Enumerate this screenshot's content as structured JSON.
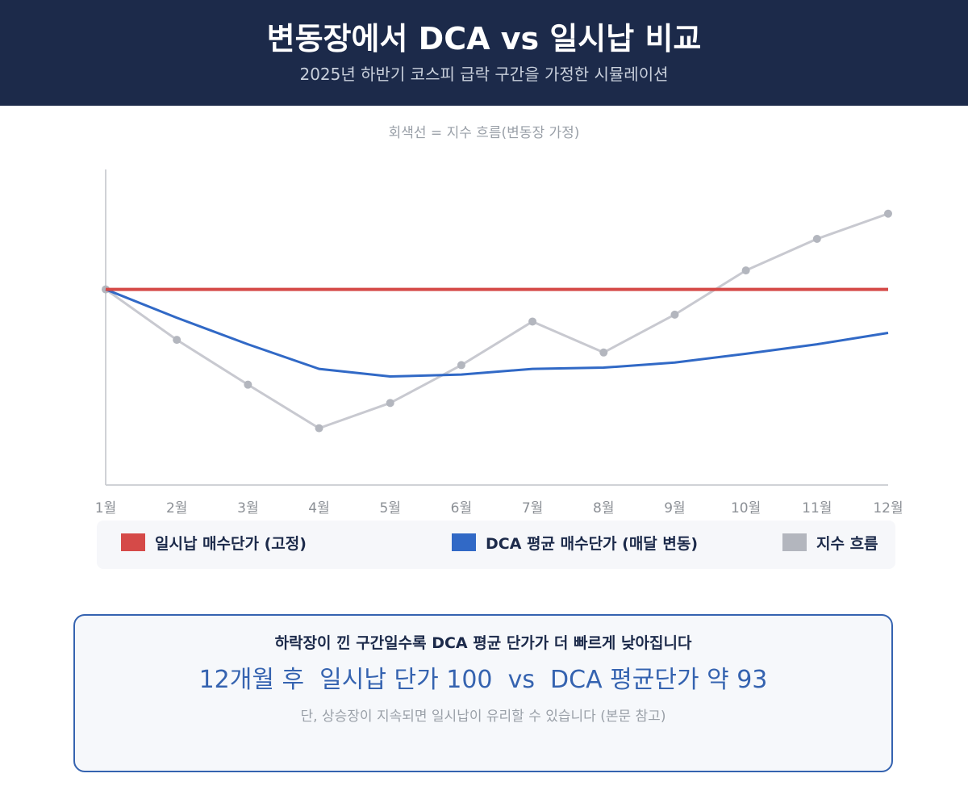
{
  "header": {
    "title": "변동장에서 DCA vs 일시납 비교",
    "subtitle": "2025년 하반기 코스피 급락 구간을 가정한 시뮬레이션",
    "background": "#1c2a4a"
  },
  "chart_note": "회색선 = 지수 흐름(변동장 가정)",
  "chart_data": {
    "type": "line",
    "categories": [
      "1월",
      "2월",
      "3월",
      "4월",
      "5월",
      "6월",
      "7월",
      "8월",
      "9월",
      "10월",
      "11월",
      "12월"
    ],
    "series": [
      {
        "name": "일시납 매수단가 (고정)",
        "color": "#d54a48",
        "values": [
          100,
          100,
          100,
          100,
          100,
          100,
          100,
          100,
          100,
          100,
          100,
          100
        ],
        "markers": false
      },
      {
        "name": "DCA 평균 매수단가 (매달 변동)",
        "color": "#3169c6",
        "values": [
          100,
          95.5,
          91.3,
          87.4,
          86.2,
          86.5,
          87.4,
          87.6,
          88.4,
          89.8,
          91.3,
          93.1
        ],
        "markers": false
      },
      {
        "name": "지수 흐름",
        "color": "#c8c9d0",
        "marker_color": "#b3b6be",
        "values": [
          100,
          92,
          84.9,
          78,
          82,
          88,
          94.9,
          90,
          96,
          103,
          108,
          112
        ],
        "markers": true
      }
    ],
    "ylim": [
      69,
      119
    ],
    "grid": false,
    "legend_position": "bottom"
  },
  "legend": [
    {
      "label": "일시납 매수단가 (고정)",
      "color": "#d54a48"
    },
    {
      "label": "DCA 평균 매수단가 (매달 변동)",
      "color": "#3169c6"
    },
    {
      "label": "지수 흐름",
      "color": "#b3b6be"
    }
  ],
  "callout": {
    "line1": "하락장이 낀 구간일수록 DCA 평균 단가가 더 빠르게 낮아집니다",
    "line2": "12개월 후  일시납 단가 100  vs  DCA 평균단가 약 93",
    "line3": "단, 상승장이 지속되면 일시납이 유리할 수 있습니다 (본문 참고)"
  }
}
